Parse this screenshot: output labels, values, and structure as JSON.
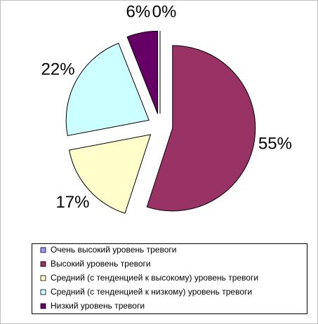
{
  "chart_data": {
    "type": "pie",
    "categories": [
      "Очень высокий уровень тревоги",
      "Высокий уровень тревоги",
      "Средний (с тенденцией к высокому) уровень тревоги",
      "Средний (с тенденцией к низкому) уровень тревоги",
      "Низкий уровень тревоги"
    ],
    "values": [
      0,
      55,
      17,
      22,
      6
    ],
    "value_labels": [
      "0%",
      "55%",
      "17%",
      "22%",
      "6%"
    ],
    "colors": [
      "#9999ff",
      "#993366",
      "#ffffcc",
      "#ccffff",
      "#660066"
    ],
    "legend": "bottom"
  }
}
